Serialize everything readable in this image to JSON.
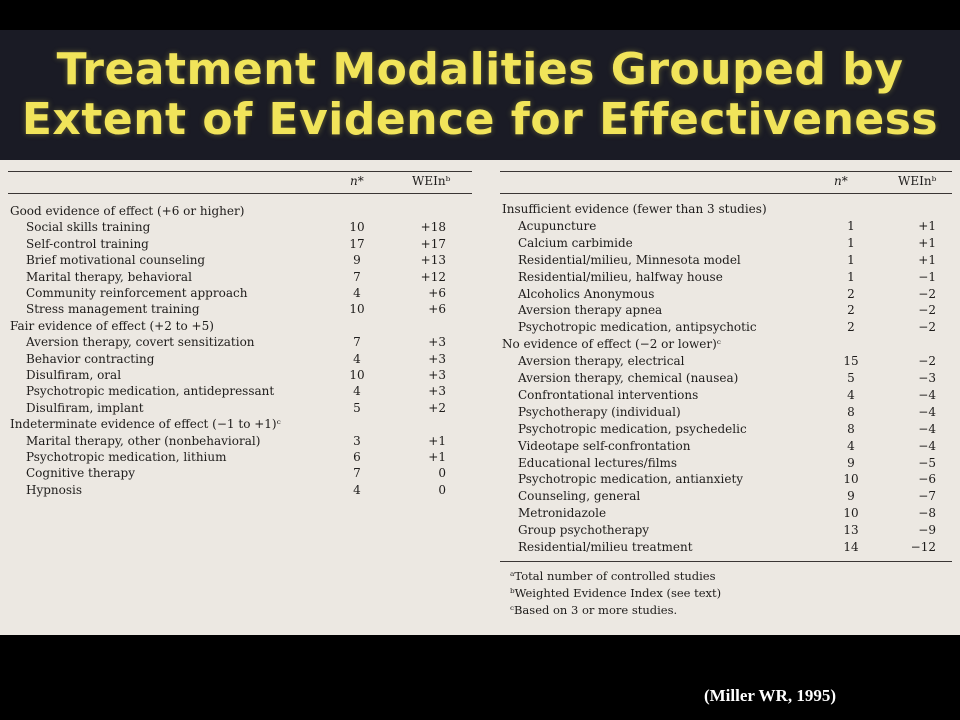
{
  "title": {
    "line1": "Treatment Modalities Grouped by",
    "line2": "Extent of Evidence for Effectiveness"
  },
  "columns": {
    "n": "n*",
    "wei": "WEInᵇ"
  },
  "left": {
    "sections": [
      {
        "heading": "Good evidence of effect (+6 or higher)",
        "rows": [
          {
            "label": "Social skills training",
            "n": "10",
            "wei": "+18"
          },
          {
            "label": "Self-control training",
            "n": "17",
            "wei": "+17"
          },
          {
            "label": "Brief motivational counseling",
            "n": "9",
            "wei": "+13"
          },
          {
            "label": "Marital therapy, behavioral",
            "n": "7",
            "wei": "+12"
          },
          {
            "label": "Community reinforcement approach",
            "n": "4",
            "wei": "+6"
          },
          {
            "label": "Stress management training",
            "n": "10",
            "wei": "+6"
          }
        ]
      },
      {
        "heading": "Fair evidence of effect (+2 to +5)",
        "rows": [
          {
            "label": "Aversion therapy, covert sensitization",
            "n": "7",
            "wei": "+3"
          },
          {
            "label": "Behavior contracting",
            "n": "4",
            "wei": "+3"
          },
          {
            "label": "Disulfiram, oral",
            "n": "10",
            "wei": "+3"
          },
          {
            "label": "Psychotropic medication, antidepressant",
            "n": "4",
            "wei": "+3"
          },
          {
            "label": "Disulfiram, implant",
            "n": "5",
            "wei": "+2"
          }
        ]
      },
      {
        "heading": "Indeterminate evidence of effect (−1 to +1)ᶜ",
        "rows": [
          {
            "label": "Marital therapy, other (nonbehavioral)",
            "n": "3",
            "wei": "+1"
          },
          {
            "label": "Psychotropic medication, lithium",
            "n": "6",
            "wei": "+1"
          },
          {
            "label": "Cognitive therapy",
            "n": "7",
            "wei": "0"
          },
          {
            "label": "Hypnosis",
            "n": "4",
            "wei": "0"
          }
        ]
      }
    ]
  },
  "right": {
    "sections": [
      {
        "heading": "Insufficient evidence (fewer than 3 studies)",
        "rows": [
          {
            "label": "Acupuncture",
            "n": "1",
            "wei": "+1"
          },
          {
            "label": "Calcium carbimide",
            "n": "1",
            "wei": "+1"
          },
          {
            "label": "Residential/milieu, Minnesota model",
            "n": "1",
            "wei": "+1"
          },
          {
            "label": "Residential/milieu, halfway house",
            "n": "1",
            "wei": "−1"
          },
          {
            "label": "Alcoholics Anonymous",
            "n": "2",
            "wei": "−2"
          },
          {
            "label": "Aversion therapy apnea",
            "n": "2",
            "wei": "−2"
          },
          {
            "label": "Psychotropic medication, antipsychotic",
            "n": "2",
            "wei": "−2"
          }
        ]
      },
      {
        "heading": "No evidence of effect (−2 or lower)ᶜ",
        "rows": [
          {
            "label": "Aversion therapy, electrical",
            "n": "15",
            "wei": "−2"
          },
          {
            "label": "Aversion therapy, chemical (nausea)",
            "n": "5",
            "wei": "−3"
          },
          {
            "label": "Confrontational interventions",
            "n": "4",
            "wei": "−4"
          },
          {
            "label": "Psychotherapy (individual)",
            "n": "8",
            "wei": "−4"
          },
          {
            "label": "Psychotropic medication, psychedelic",
            "n": "8",
            "wei": "−4"
          },
          {
            "label": "Videotape self-confrontation",
            "n": "4",
            "wei": "−4"
          },
          {
            "label": "Educational lectures/films",
            "n": "9",
            "wei": "−5"
          },
          {
            "label": "Psychotropic medication, antianxiety",
            "n": "10",
            "wei": "−6"
          },
          {
            "label": "Counseling, general",
            "n": "9",
            "wei": "−7"
          },
          {
            "label": "Metronidazole",
            "n": "10",
            "wei": "−8"
          },
          {
            "label": "Group psychotherapy",
            "n": "13",
            "wei": "−9"
          },
          {
            "label": "Residential/milieu treatment",
            "n": "14",
            "wei": "−12"
          }
        ]
      }
    ],
    "footnotes": [
      "ᵃTotal number of controlled studies",
      "ᵇWeighted Evidence Index (see text)",
      "ᶜBased on 3 or more studies."
    ]
  },
  "citation": "(Miller WR, 1995)",
  "colors": {
    "title": "#f1e45a",
    "band": "#1a1b25",
    "paper": "#ece8e2",
    "background": "#000000"
  }
}
